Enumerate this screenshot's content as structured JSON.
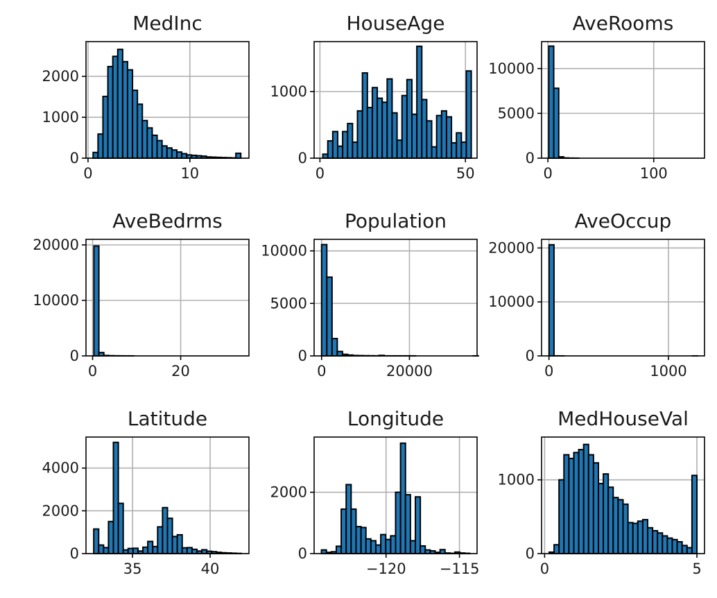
{
  "figure": {
    "bar_color": "#1f77b4",
    "edge_color": "#000000",
    "grid_color": "#b0b0b0"
  },
  "chart_data": [
    {
      "type": "bar",
      "title": "MedInc",
      "bins": 30,
      "xlim": [
        -0.2,
        15.8
      ],
      "ylim": [
        0,
        2850
      ],
      "bin_range": [
        0.5,
        15.0
      ],
      "values": [
        140,
        590,
        1510,
        2240,
        2490,
        2660,
        2360,
        2160,
        1660,
        1320,
        920,
        740,
        560,
        430,
        300,
        250,
        200,
        150,
        110,
        80,
        70,
        60,
        50,
        30,
        25,
        20,
        15,
        12,
        8,
        120
      ],
      "xticks": [
        0,
        10
      ],
      "xtick_labels": [
        "0",
        "10"
      ],
      "yticks": [
        0,
        1000,
        2000
      ],
      "ytick_labels": [
        "0",
        "1000",
        "2000"
      ]
    },
    {
      "type": "bar",
      "title": "HouseAge",
      "bins": 30,
      "xlim": [
        -2.0,
        54.0
      ],
      "ylim": [
        0,
        1750
      ],
      "bin_range": [
        1,
        52
      ],
      "values": [
        60,
        260,
        400,
        180,
        400,
        520,
        240,
        710,
        1280,
        760,
        1060,
        900,
        840,
        1190,
        680,
        270,
        940,
        1180,
        660,
        1680,
        880,
        560,
        170,
        640,
        710,
        620,
        230,
        380,
        240,
        1310
      ],
      "xticks": [
        0,
        50
      ],
      "xtick_labels": [
        "0",
        "50"
      ],
      "yticks": [
        0,
        1000
      ],
      "ytick_labels": [
        "0",
        "1000"
      ]
    },
    {
      "type": "bar",
      "title": "AveRooms",
      "bins": 30,
      "xlim": [
        -6.0,
        148.0
      ],
      "ylim": [
        0,
        13000
      ],
      "bin_range": [
        0.8,
        141.9
      ],
      "values": [
        12500,
        7800,
        150,
        30,
        10,
        5,
        0,
        0,
        0,
        0,
        0,
        0,
        0,
        0,
        0,
        0,
        0,
        0,
        0,
        0,
        0,
        0,
        0,
        0,
        0,
        0,
        0,
        0,
        0,
        0
      ],
      "xticks": [
        0,
        100
      ],
      "xtick_labels": [
        "0",
        "100"
      ],
      "yticks": [
        0,
        5000,
        10000
      ],
      "ytick_labels": [
        "0",
        "5000",
        "10000"
      ]
    },
    {
      "type": "bar",
      "title": "AveBedrms",
      "bins": 30,
      "xlim": [
        -1.5,
        35.5
      ],
      "ylim": [
        0,
        21000
      ],
      "bin_range": [
        0.3,
        34.1
      ],
      "values": [
        19800,
        600,
        80,
        40,
        20,
        10,
        5,
        5,
        0,
        0,
        0,
        0,
        0,
        0,
        0,
        0,
        0,
        0,
        0,
        0,
        0,
        0,
        0,
        0,
        0,
        0,
        0,
        0,
        0,
        0
      ],
      "xticks": [
        0,
        20
      ],
      "xtick_labels": [
        "0",
        "20"
      ],
      "yticks": [
        0,
        10000,
        20000
      ],
      "ytick_labels": [
        "0",
        "10000",
        "20000"
      ]
    },
    {
      "type": "bar",
      "title": "Population",
      "bins": 30,
      "xlim": [
        -1700,
        35400
      ],
      "ylim": [
        0,
        11100
      ],
      "bin_range": [
        3,
        35682
      ],
      "values": [
        10600,
        7500,
        1650,
        420,
        150,
        80,
        40,
        30,
        20,
        15,
        10,
        50,
        5,
        5,
        5,
        5,
        5,
        5,
        0,
        0,
        0,
        0,
        0,
        0,
        0,
        0,
        0,
        0,
        0,
        5
      ],
      "xticks": [
        0,
        20000
      ],
      "xtick_labels": [
        "0",
        "20000"
      ],
      "yticks": [
        0,
        5000,
        10000
      ],
      "ytick_labels": [
        "0",
        "5000",
        "10000"
      ]
    },
    {
      "type": "bar",
      "title": "AveOccup",
      "bins": 30,
      "xlim": [
        -62,
        1302
      ],
      "ylim": [
        0,
        21600
      ],
      "bin_range": [
        0.7,
        1243.3
      ],
      "values": [
        20600,
        10,
        5,
        0,
        0,
        0,
        0,
        0,
        0,
        0,
        0,
        0,
        0,
        0,
        0,
        0,
        0,
        0,
        0,
        0,
        0,
        0,
        0,
        0,
        0,
        0,
        0,
        0,
        0,
        5
      ],
      "xticks": [
        0,
        1000
      ],
      "xtick_labels": [
        "0",
        "1000"
      ],
      "yticks": [
        0,
        10000,
        20000
      ],
      "ytick_labels": [
        "0",
        "10000",
        "20000"
      ]
    },
    {
      "type": "bar",
      "title": "Latitude",
      "bins": 30,
      "xlim": [
        32.0,
        42.5
      ],
      "ylim": [
        0,
        5450
      ],
      "bin_range": [
        32.5,
        42.0
      ],
      "values": [
        1150,
        400,
        280,
        1500,
        5200,
        2350,
        170,
        240,
        250,
        120,
        300,
        570,
        330,
        1250,
        2150,
        1650,
        800,
        880,
        270,
        280,
        200,
        120,
        180,
        110,
        90,
        60,
        40,
        30,
        20,
        10
      ],
      "xticks": [
        35,
        40
      ],
      "xtick_labels": [
        "35",
        "40"
      ],
      "yticks": [
        0,
        2000,
        4000
      ],
      "ytick_labels": [
        "0",
        "2000",
        "4000"
      ]
    },
    {
      "type": "bar",
      "title": "Longitude",
      "bins": 30,
      "xlim": [
        -124.9,
        -113.8
      ],
      "ylim": [
        0,
        3800
      ],
      "bin_range": [
        -124.4,
        -114.3
      ],
      "values": [
        120,
        40,
        60,
        240,
        1450,
        2250,
        1450,
        880,
        850,
        480,
        420,
        280,
        620,
        460,
        580,
        2000,
        3600,
        1920,
        420,
        1850,
        250,
        120,
        90,
        40,
        130,
        20,
        10,
        50,
        20,
        10
      ],
      "xticks": [
        -120,
        -115
      ],
      "xtick_labels": [
        "−120",
        "−115"
      ],
      "yticks": [
        0,
        2000
      ],
      "ytick_labels": [
        "0",
        "2000"
      ]
    },
    {
      "type": "bar",
      "title": "MedHouseVal",
      "bins": 30,
      "xlim": [
        -0.1,
        5.25
      ],
      "ylim": [
        0,
        1580
      ],
      "bin_range": [
        0.15,
        5.0
      ],
      "values": [
        20,
        120,
        1000,
        1340,
        1290,
        1370,
        1410,
        1480,
        1340,
        1230,
        950,
        1080,
        900,
        760,
        730,
        670,
        420,
        410,
        440,
        460,
        350,
        310,
        280,
        240,
        210,
        190,
        160,
        110,
        80,
        1060
      ],
      "xticks": [
        0,
        5
      ],
      "xtick_labels": [
        "0",
        "5"
      ],
      "yticks": [
        0,
        1000
      ],
      "ytick_labels": [
        "0",
        "1000"
      ]
    }
  ]
}
